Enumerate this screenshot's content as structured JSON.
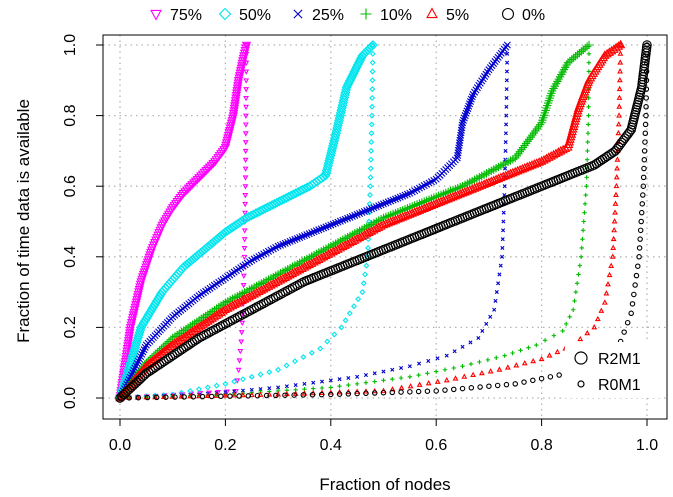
{
  "chart_data": {
    "type": "scatter",
    "title": "",
    "xlabel": "Fraction of nodes",
    "ylabel": "Fraction of time data is available",
    "xlim": [
      0,
      1
    ],
    "ylim": [
      0,
      1
    ],
    "xticks": [
      "0.0",
      "0.2",
      "0.4",
      "0.6",
      "0.8",
      "1.0"
    ],
    "yticks": [
      "0.0",
      "0.2",
      "0.4",
      "0.6",
      "0.8",
      "1.0"
    ],
    "grid": true,
    "legend_top": [
      {
        "symbol": "▽",
        "label": "75%",
        "color": "#ff00ff"
      },
      {
        "symbol": "◇",
        "label": "50%",
        "color": "#00e5ee"
      },
      {
        "symbol": "×",
        "label": "25%",
        "color": "#0000cd"
      },
      {
        "symbol": "+",
        "label": "10%",
        "color": "#00bb00"
      },
      {
        "symbol": "△",
        "label": "5%",
        "color": "#ff0000"
      },
      {
        "symbol": "○",
        "label": "0%",
        "color": "#000000"
      }
    ],
    "legend_bottom": [
      {
        "marker": "large-circle",
        "label": "R2M1"
      },
      {
        "marker": "small-circle",
        "label": "R0M1"
      }
    ],
    "series": [
      {
        "label": "75%",
        "marker": "triangle-down",
        "color": "#ff00ff",
        "R2M1": [
          [
            0,
            0
          ],
          [
            0.02,
            0.2
          ],
          [
            0.04,
            0.33
          ],
          [
            0.06,
            0.42
          ],
          [
            0.08,
            0.49
          ],
          [
            0.1,
            0.54
          ],
          [
            0.12,
            0.58
          ],
          [
            0.14,
            0.61
          ],
          [
            0.16,
            0.64
          ],
          [
            0.18,
            0.67
          ],
          [
            0.2,
            0.71
          ],
          [
            0.215,
            0.8
          ],
          [
            0.225,
            0.9
          ],
          [
            0.235,
            0.97
          ],
          [
            0.24,
            1.0
          ]
        ],
        "R0M1": [
          [
            0,
            0
          ],
          [
            0.22,
            0.02
          ],
          [
            0.225,
            0.08
          ],
          [
            0.23,
            0.16
          ],
          [
            0.233,
            0.24
          ],
          [
            0.236,
            0.4
          ],
          [
            0.238,
            0.6
          ],
          [
            0.239,
            0.8
          ],
          [
            0.24,
            1.0
          ]
        ]
      },
      {
        "label": "50%",
        "marker": "diamond",
        "color": "#00e5ee",
        "R2M1": [
          [
            0,
            0
          ],
          [
            0.04,
            0.2
          ],
          [
            0.08,
            0.3
          ],
          [
            0.12,
            0.37
          ],
          [
            0.16,
            0.42
          ],
          [
            0.2,
            0.47
          ],
          [
            0.24,
            0.51
          ],
          [
            0.28,
            0.54
          ],
          [
            0.32,
            0.57
          ],
          [
            0.36,
            0.6
          ],
          [
            0.39,
            0.63
          ],
          [
            0.41,
            0.75
          ],
          [
            0.43,
            0.88
          ],
          [
            0.46,
            0.97
          ],
          [
            0.48,
            1.0
          ]
        ],
        "R0M1": [
          [
            0,
            0
          ],
          [
            0.1,
            0.01
          ],
          [
            0.2,
            0.04
          ],
          [
            0.3,
            0.08
          ],
          [
            0.38,
            0.14
          ],
          [
            0.42,
            0.2
          ],
          [
            0.46,
            0.3
          ],
          [
            0.47,
            0.4
          ],
          [
            0.475,
            0.6
          ],
          [
            0.478,
            0.8
          ],
          [
            0.48,
            1.0
          ]
        ]
      },
      {
        "label": "25%",
        "marker": "cross",
        "color": "#0000cd",
        "R2M1": [
          [
            0,
            0
          ],
          [
            0.05,
            0.15
          ],
          [
            0.1,
            0.23
          ],
          [
            0.15,
            0.29
          ],
          [
            0.2,
            0.34
          ],
          [
            0.25,
            0.39
          ],
          [
            0.3,
            0.43
          ],
          [
            0.35,
            0.46
          ],
          [
            0.4,
            0.49
          ],
          [
            0.45,
            0.52
          ],
          [
            0.5,
            0.55
          ],
          [
            0.55,
            0.58
          ],
          [
            0.6,
            0.62
          ],
          [
            0.64,
            0.68
          ],
          [
            0.65,
            0.78
          ],
          [
            0.67,
            0.86
          ],
          [
            0.7,
            0.93
          ],
          [
            0.735,
            1.0
          ]
        ],
        "R0M1": [
          [
            0,
            0
          ],
          [
            0.15,
            0.01
          ],
          [
            0.3,
            0.03
          ],
          [
            0.45,
            0.06
          ],
          [
            0.55,
            0.09
          ],
          [
            0.62,
            0.12
          ],
          [
            0.68,
            0.17
          ],
          [
            0.71,
            0.25
          ],
          [
            0.725,
            0.4
          ],
          [
            0.73,
            0.6
          ],
          [
            0.733,
            0.8
          ],
          [
            0.735,
            1.0
          ]
        ]
      },
      {
        "label": "10%",
        "marker": "plus",
        "color": "#00bb00",
        "R2M1": [
          [
            0,
            0
          ],
          [
            0.05,
            0.1
          ],
          [
            0.1,
            0.17
          ],
          [
            0.15,
            0.22
          ],
          [
            0.2,
            0.27
          ],
          [
            0.25,
            0.31
          ],
          [
            0.3,
            0.35
          ],
          [
            0.35,
            0.39
          ],
          [
            0.4,
            0.43
          ],
          [
            0.45,
            0.47
          ],
          [
            0.5,
            0.51
          ],
          [
            0.55,
            0.54
          ],
          [
            0.6,
            0.57
          ],
          [
            0.65,
            0.6
          ],
          [
            0.7,
            0.64
          ],
          [
            0.75,
            0.68
          ],
          [
            0.8,
            0.78
          ],
          [
            0.82,
            0.87
          ],
          [
            0.85,
            0.95
          ],
          [
            0.89,
            1.0
          ]
        ],
        "R0M1": [
          [
            0,
            0
          ],
          [
            0.2,
            0.01
          ],
          [
            0.4,
            0.03
          ],
          [
            0.55,
            0.06
          ],
          [
            0.65,
            0.09
          ],
          [
            0.73,
            0.12
          ],
          [
            0.79,
            0.15
          ],
          [
            0.84,
            0.19
          ],
          [
            0.86,
            0.25
          ],
          [
            0.875,
            0.4
          ],
          [
            0.885,
            0.6
          ],
          [
            0.889,
            0.8
          ],
          [
            0.89,
            1.0
          ]
        ]
      },
      {
        "label": "5%",
        "marker": "triangle-up",
        "color": "#ff0000",
        "R2M1": [
          [
            0,
            0
          ],
          [
            0.05,
            0.09
          ],
          [
            0.1,
            0.15
          ],
          [
            0.15,
            0.2
          ],
          [
            0.2,
            0.25
          ],
          [
            0.25,
            0.29
          ],
          [
            0.3,
            0.33
          ],
          [
            0.35,
            0.37
          ],
          [
            0.4,
            0.41
          ],
          [
            0.45,
            0.45
          ],
          [
            0.5,
            0.49
          ],
          [
            0.55,
            0.52
          ],
          [
            0.6,
            0.55
          ],
          [
            0.65,
            0.58
          ],
          [
            0.7,
            0.61
          ],
          [
            0.75,
            0.64
          ],
          [
            0.8,
            0.67
          ],
          [
            0.85,
            0.71
          ],
          [
            0.87,
            0.82
          ],
          [
            0.89,
            0.9
          ],
          [
            0.92,
            0.97
          ],
          [
            0.95,
            1.0
          ]
        ],
        "R0M1": [
          [
            0,
            0
          ],
          [
            0.3,
            0.01
          ],
          [
            0.5,
            0.02
          ],
          [
            0.62,
            0.05
          ],
          [
            0.72,
            0.08
          ],
          [
            0.8,
            0.11
          ],
          [
            0.86,
            0.15
          ],
          [
            0.9,
            0.2
          ],
          [
            0.92,
            0.27
          ],
          [
            0.935,
            0.4
          ],
          [
            0.942,
            0.6
          ],
          [
            0.947,
            0.8
          ],
          [
            0.95,
            1.0
          ]
        ]
      },
      {
        "label": "0%",
        "marker": "circle",
        "color": "#000000",
        "R2M1": [
          [
            0,
            0
          ],
          [
            0.05,
            0.07
          ],
          [
            0.1,
            0.12
          ],
          [
            0.15,
            0.17
          ],
          [
            0.2,
            0.21
          ],
          [
            0.25,
            0.25
          ],
          [
            0.3,
            0.29
          ],
          [
            0.35,
            0.33
          ],
          [
            0.4,
            0.36
          ],
          [
            0.45,
            0.39
          ],
          [
            0.5,
            0.42
          ],
          [
            0.55,
            0.45
          ],
          [
            0.6,
            0.48
          ],
          [
            0.65,
            0.51
          ],
          [
            0.7,
            0.54
          ],
          [
            0.75,
            0.57
          ],
          [
            0.8,
            0.6
          ],
          [
            0.85,
            0.63
          ],
          [
            0.9,
            0.66
          ],
          [
            0.94,
            0.7
          ],
          [
            0.97,
            0.76
          ],
          [
            0.99,
            0.88
          ],
          [
            1.0,
            1.0
          ]
        ],
        "R0M1": [
          [
            0,
            0
          ],
          [
            0.4,
            0.01
          ],
          [
            0.6,
            0.02
          ],
          [
            0.75,
            0.04
          ],
          [
            0.85,
            0.07
          ],
          [
            0.91,
            0.11
          ],
          [
            0.95,
            0.16
          ],
          [
            0.97,
            0.24
          ],
          [
            0.985,
            0.4
          ],
          [
            0.993,
            0.6
          ],
          [
            0.998,
            0.8
          ],
          [
            1.0,
            1.0
          ]
        ]
      }
    ]
  }
}
